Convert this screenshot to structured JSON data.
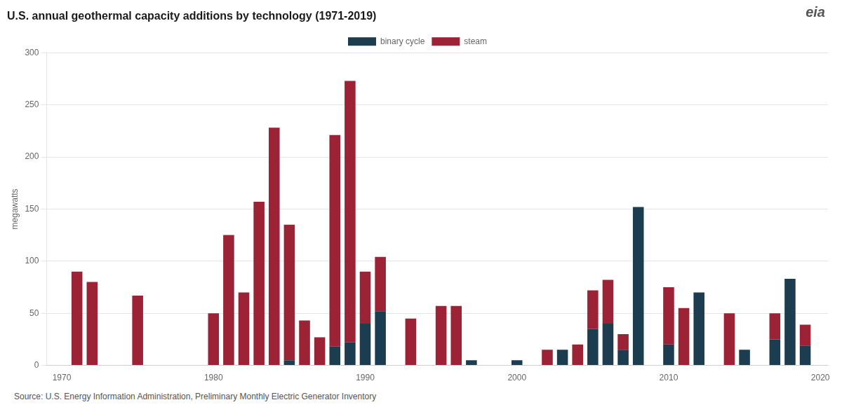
{
  "chart_data": {
    "type": "bar",
    "title": "U.S. annual geothermal capacity additions by technology (1971-2019)",
    "y_label": "megawatts",
    "x": [
      1971,
      1972,
      1973,
      1974,
      1975,
      1976,
      1977,
      1978,
      1979,
      1980,
      1981,
      1982,
      1983,
      1984,
      1985,
      1986,
      1987,
      1988,
      1989,
      1990,
      1991,
      1992,
      1993,
      1994,
      1995,
      1996,
      1997,
      1998,
      1999,
      2000,
      2001,
      2002,
      2003,
      2004,
      2005,
      2006,
      2007,
      2008,
      2009,
      2010,
      2011,
      2012,
      2013,
      2014,
      2015,
      2016,
      2017,
      2018,
      2019
    ],
    "series": [
      {
        "name": "binary cycle",
        "color": "#1C3D4F",
        "values": [
          0,
          0,
          0,
          0,
          0,
          0,
          0,
          0,
          0,
          0,
          0,
          0,
          0,
          0,
          5,
          0,
          0,
          18,
          22,
          40,
          52,
          0,
          0,
          0,
          0,
          0,
          5,
          0,
          0,
          5,
          0,
          0,
          15,
          0,
          35,
          40,
          15,
          152,
          0,
          20,
          0,
          70,
          0,
          0,
          15,
          0,
          25,
          83,
          19
        ]
      },
      {
        "name": "steam",
        "color": "#9B2335",
        "values": [
          90,
          80,
          0,
          0,
          67,
          0,
          0,
          0,
          0,
          50,
          125,
          70,
          157,
          228,
          130,
          43,
          27,
          203,
          251,
          50,
          52,
          0,
          45,
          0,
          57,
          57,
          0,
          0,
          0,
          0,
          0,
          15,
          0,
          20,
          37,
          42,
          15,
          0,
          0,
          55,
          55,
          0,
          0,
          50,
          0,
          0,
          25,
          0,
          20
        ]
      }
    ],
    "stacked": true,
    "xlim": [
      1969.0,
      2020.5
    ],
    "xticks": [
      1970,
      1980,
      1990,
      2000,
      2010,
      2020
    ],
    "ylim": [
      0,
      300
    ],
    "yticks": [
      0,
      50,
      100,
      150,
      200,
      250,
      300
    ],
    "grid": "y",
    "legend": "top",
    "annotations": [
      {
        "text": "Source: U.S. Energy Information Administration, Preliminary Monthly Electric Generator Inventory"
      },
      {
        "text": "eia"
      }
    ]
  }
}
